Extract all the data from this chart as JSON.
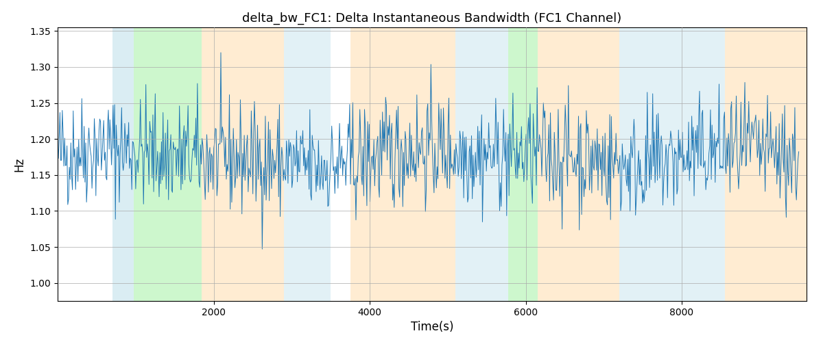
{
  "title": "delta_bw_FC1: Delta Instantaneous Bandwidth (FC1 Channel)",
  "xlabel": "Time(s)",
  "ylabel": "Hz",
  "ylim": [
    0.975,
    1.355
  ],
  "xlim": [
    0,
    9600
  ],
  "yticks": [
    1.0,
    1.05,
    1.1,
    1.15,
    1.2,
    1.25,
    1.3,
    1.35
  ],
  "xticks": [
    2000,
    4000,
    6000,
    8000
  ],
  "line_color": "#1f77b4",
  "line_width": 0.7,
  "seed": 42,
  "n_points": 950,
  "mean": 1.175,
  "std": 0.038,
  "background_color": "#ffffff",
  "grid_color": "#aaaaaa",
  "colored_bands": [
    {
      "xmin": 700,
      "xmax": 980,
      "color": "#add8e6",
      "alpha": 0.45
    },
    {
      "xmin": 980,
      "xmax": 1850,
      "color": "#90ee90",
      "alpha": 0.45
    },
    {
      "xmin": 1850,
      "xmax": 2900,
      "color": "#ffdead",
      "alpha": 0.55
    },
    {
      "xmin": 2900,
      "xmax": 3500,
      "color": "#add8e6",
      "alpha": 0.35
    },
    {
      "xmin": 3500,
      "xmax": 3750,
      "color": "#ffffff",
      "alpha": 0.0
    },
    {
      "xmin": 3750,
      "xmax": 5100,
      "color": "#ffdead",
      "alpha": 0.55
    },
    {
      "xmin": 5100,
      "xmax": 5600,
      "color": "#add8e6",
      "alpha": 0.35
    },
    {
      "xmin": 5600,
      "xmax": 5780,
      "color": "#add8e6",
      "alpha": 0.35
    },
    {
      "xmin": 5780,
      "xmax": 6150,
      "color": "#90ee90",
      "alpha": 0.45
    },
    {
      "xmin": 6150,
      "xmax": 7200,
      "color": "#ffdead",
      "alpha": 0.55
    },
    {
      "xmin": 7200,
      "xmax": 7800,
      "color": "#add8e6",
      "alpha": 0.35
    },
    {
      "xmin": 7800,
      "xmax": 8550,
      "color": "#add8e6",
      "alpha": 0.35
    },
    {
      "xmin": 8550,
      "xmax": 9600,
      "color": "#ffdead",
      "alpha": 0.55
    }
  ]
}
